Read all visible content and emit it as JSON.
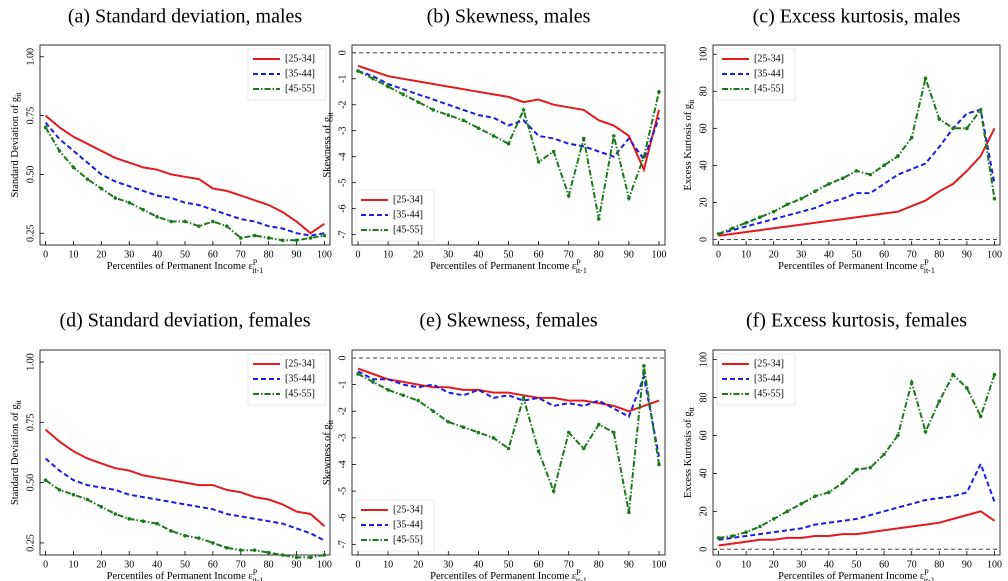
{
  "chart_data": [
    {
      "type": "line",
      "title": "(a) Standard deviation, males",
      "ylabel": {
        "text": "Standard Deviation of g",
        "sub": "it"
      },
      "xlabel": {
        "text": "Percentiles of Permanent Income ε",
        "sup": "P",
        "sub": "it-1"
      },
      "x": [
        0,
        5,
        10,
        15,
        20,
        25,
        30,
        35,
        40,
        45,
        50,
        55,
        60,
        65,
        70,
        75,
        80,
        85,
        90,
        95,
        100
      ],
      "xlim": [
        -2,
        102
      ],
      "xticks": [
        0,
        10,
        20,
        30,
        40,
        50,
        60,
        70,
        80,
        90,
        100
      ],
      "ylim": [
        0.2,
        1.05
      ],
      "yticks": [
        0.25,
        {
          "value": 0.5,
          "label": "0.50"
        },
        0.75,
        {
          "value": 1,
          "label": "1.00"
        }
      ],
      "legend": "upper right",
      "series": [
        {
          "name": "[25-34]",
          "color": "#e41a1c",
          "style": "solid",
          "values": [
            0.75,
            0.7,
            0.66,
            0.63,
            0.6,
            0.57,
            0.55,
            0.53,
            0.52,
            0.5,
            0.49,
            0.48,
            0.44,
            0.43,
            0.41,
            0.39,
            0.37,
            0.34,
            0.3,
            0.25,
            0.29
          ]
        },
        {
          "name": "[35-44]",
          "color": "#1c1ce0",
          "style": "dashed",
          "values": [
            0.72,
            0.65,
            0.6,
            0.55,
            0.5,
            0.47,
            0.45,
            0.43,
            0.41,
            0.4,
            0.38,
            0.37,
            0.35,
            0.33,
            0.31,
            0.3,
            0.28,
            0.27,
            0.25,
            0.24,
            0.25
          ]
        },
        {
          "name": "[45-55]",
          "color": "#1a7a1a",
          "style": "dashdot",
          "values": [
            0.7,
            0.6,
            0.53,
            0.48,
            0.44,
            0.4,
            0.38,
            0.35,
            0.32,
            0.3,
            0.3,
            0.28,
            0.3,
            0.28,
            0.23,
            0.24,
            0.23,
            0.22,
            0.22,
            0.23,
            0.24
          ]
        }
      ]
    },
    {
      "type": "line",
      "title": "(b) Skewness, males",
      "ylabel": {
        "text": "Skewness of g",
        "sub": "it"
      },
      "xlabel": {
        "text": "Percentiles of Permanent Income ε",
        "sup": "P",
        "sub": "it-1"
      },
      "x": [
        0,
        5,
        10,
        15,
        20,
        25,
        30,
        35,
        40,
        45,
        50,
        55,
        60,
        65,
        70,
        75,
        80,
        85,
        90,
        95,
        100
      ],
      "xlim": [
        -2,
        102
      ],
      "xticks": [
        0,
        10,
        20,
        30,
        40,
        50,
        60,
        70,
        80,
        90,
        100
      ],
      "ylim": [
        -7.4,
        0.3
      ],
      "yticks": [
        0,
        -1,
        -2,
        -3,
        -4,
        -5,
        -6,
        -7
      ],
      "hline": 0,
      "legend": "lower left",
      "series": [
        {
          "name": "[25-34]",
          "color": "#e41a1c",
          "style": "solid",
          "values": [
            -0.5,
            -0.7,
            -0.9,
            -1.0,
            -1.1,
            -1.2,
            -1.3,
            -1.4,
            -1.5,
            -1.6,
            -1.7,
            -1.9,
            -1.8,
            -2.0,
            -2.1,
            -2.2,
            -2.6,
            -2.8,
            -3.2,
            -4.5,
            -2.2
          ]
        },
        {
          "name": "[35-44]",
          "color": "#1c1ce0",
          "style": "dashed",
          "values": [
            -0.7,
            -0.9,
            -1.2,
            -1.4,
            -1.6,
            -1.8,
            -2.0,
            -2.2,
            -2.4,
            -2.5,
            -2.8,
            -2.6,
            -3.2,
            -3.3,
            -3.5,
            -3.6,
            -3.8,
            -4.0,
            -3.3,
            -4.1,
            -2.5
          ]
        },
        {
          "name": "[45-55]",
          "color": "#1a7a1a",
          "style": "dashdot",
          "values": [
            -0.7,
            -1.0,
            -1.3,
            -1.6,
            -1.9,
            -2.2,
            -2.4,
            -2.6,
            -2.9,
            -3.2,
            -3.5,
            -2.2,
            -4.2,
            -3.8,
            -5.5,
            -3.3,
            -6.4,
            -3.2,
            -5.6,
            -4.0,
            -1.5
          ]
        }
      ]
    },
    {
      "type": "line",
      "title": "(c) Excess kurtosis, males",
      "ylabel": {
        "text": "Excess Kurtosis of g",
        "sub": "it"
      },
      "xlabel": {
        "text": "Percentiles of Permanent Income ε",
        "sup": "P",
        "sub": "it-1"
      },
      "x": [
        0,
        5,
        10,
        15,
        20,
        25,
        30,
        35,
        40,
        45,
        50,
        55,
        60,
        65,
        70,
        75,
        80,
        85,
        90,
        95,
        100
      ],
      "xlim": [
        -2,
        102
      ],
      "xticks": [
        0,
        10,
        20,
        30,
        40,
        50,
        60,
        70,
        80,
        90,
        100
      ],
      "ylim": [
        -3,
        105
      ],
      "yticks": [
        0,
        20,
        40,
        60,
        80,
        100
      ],
      "hline": 0,
      "legend": "upper left",
      "series": [
        {
          "name": "[25-34]",
          "color": "#e41a1c",
          "style": "solid",
          "values": [
            2,
            3,
            4,
            5,
            6,
            7,
            8,
            9,
            10,
            11,
            12,
            13,
            14,
            15,
            18,
            21,
            26,
            30,
            37,
            45,
            60
          ]
        },
        {
          "name": "[35-44]",
          "color": "#1c1ce0",
          "style": "dashed",
          "values": [
            3,
            5,
            7,
            9,
            11,
            13,
            15,
            17,
            20,
            22,
            25,
            25,
            30,
            35,
            38,
            41,
            50,
            60,
            68,
            70,
            30
          ]
        },
        {
          "name": "[45-55]",
          "color": "#1a7a1a",
          "style": "dashdot",
          "values": [
            3,
            6,
            9,
            12,
            15,
            19,
            22,
            26,
            30,
            33,
            37,
            35,
            40,
            45,
            55,
            87,
            65,
            60,
            60,
            70,
            22
          ]
        }
      ]
    },
    {
      "type": "line",
      "title": "(d) Standard deviation, females",
      "ylabel": {
        "text": "Standard Deviation of g",
        "sub": "it"
      },
      "xlabel": {
        "text": "Percentiles of Permanent Income ε",
        "sup": "P",
        "sub": "it-1"
      },
      "x": [
        0,
        5,
        10,
        15,
        20,
        25,
        30,
        35,
        40,
        45,
        50,
        55,
        60,
        65,
        70,
        75,
        80,
        85,
        90,
        95,
        100
      ],
      "xlim": [
        -2,
        102
      ],
      "xticks": [
        0,
        10,
        20,
        30,
        40,
        50,
        60,
        70,
        80,
        90,
        100
      ],
      "ylim": [
        0.2,
        1.05
      ],
      "yticks": [
        0.25,
        {
          "value": 0.5,
          "label": "0.50"
        },
        0.75,
        {
          "value": 1,
          "label": "1.00"
        }
      ],
      "legend": "upper right",
      "series": [
        {
          "name": "[25-34]",
          "color": "#e41a1c",
          "style": "solid",
          "values": [
            0.72,
            0.67,
            0.63,
            0.6,
            0.58,
            0.56,
            0.55,
            0.53,
            0.52,
            0.51,
            0.5,
            0.49,
            0.49,
            0.47,
            0.46,
            0.44,
            0.43,
            0.41,
            0.38,
            0.37,
            0.32
          ]
        },
        {
          "name": "[35-44]",
          "color": "#1c1ce0",
          "style": "dashed",
          "values": [
            0.6,
            0.55,
            0.51,
            0.49,
            0.48,
            0.47,
            0.45,
            0.44,
            0.43,
            0.42,
            0.41,
            0.4,
            0.39,
            0.37,
            0.36,
            0.35,
            0.34,
            0.33,
            0.31,
            0.29,
            0.26
          ]
        },
        {
          "name": "[45-55]",
          "color": "#1a7a1a",
          "style": "dashdot",
          "values": [
            0.51,
            0.47,
            0.45,
            0.43,
            0.4,
            0.37,
            0.35,
            0.34,
            0.33,
            0.3,
            0.28,
            0.27,
            0.25,
            0.23,
            0.22,
            0.22,
            0.21,
            0.2,
            0.19,
            0.19,
            0.2
          ]
        }
      ]
    },
    {
      "type": "line",
      "title": "(e) Skewness, females",
      "ylabel": {
        "text": "Skewness of g",
        "sub": "it"
      },
      "xlabel": {
        "text": "Percentiles of Permanent Income ε",
        "sup": "P",
        "sub": "it-1"
      },
      "x": [
        0,
        5,
        10,
        15,
        20,
        25,
        30,
        35,
        40,
        45,
        50,
        55,
        60,
        65,
        70,
        75,
        80,
        85,
        90,
        95,
        100
      ],
      "xlim": [
        -2,
        102
      ],
      "xticks": [
        0,
        10,
        20,
        30,
        40,
        50,
        60,
        70,
        80,
        90,
        100
      ],
      "ylim": [
        -7.4,
        0.3
      ],
      "yticks": [
        0,
        -1,
        -2,
        -3,
        -4,
        -5,
        -6,
        -7
      ],
      "hline": 0,
      "legend": "lower left",
      "series": [
        {
          "name": "[25-34]",
          "color": "#e41a1c",
          "style": "solid",
          "values": [
            -0.4,
            -0.6,
            -0.8,
            -0.9,
            -1.0,
            -1.1,
            -1.1,
            -1.2,
            -1.2,
            -1.3,
            -1.3,
            -1.4,
            -1.5,
            -1.5,
            -1.6,
            -1.6,
            -1.7,
            -1.8,
            -2.0,
            -1.8,
            -1.6
          ]
        },
        {
          "name": "[35-44]",
          "color": "#1c1ce0",
          "style": "dashed",
          "values": [
            -0.5,
            -0.8,
            -0.8,
            -1.0,
            -1.1,
            -1.0,
            -1.3,
            -1.4,
            -1.2,
            -1.5,
            -1.4,
            -1.6,
            -1.5,
            -1.8,
            -1.7,
            -1.8,
            -1.6,
            -1.9,
            -2.2,
            -0.7,
            -3.7
          ]
        },
        {
          "name": "[45-55]",
          "color": "#1a7a1a",
          "style": "dashdot",
          "values": [
            -0.6,
            -0.9,
            -1.2,
            -1.4,
            -1.6,
            -2.0,
            -2.4,
            -2.6,
            -2.8,
            -3.0,
            -3.4,
            -1.5,
            -3.5,
            -5.0,
            -2.8,
            -3.4,
            -2.5,
            -2.8,
            -5.8,
            -0.3,
            -4.0
          ]
        }
      ]
    },
    {
      "type": "line",
      "title": "(f) Excess kurtosis, females",
      "ylabel": {
        "text": "Excess Kurtosis of g",
        "sub": "it"
      },
      "xlabel": {
        "text": "Percentiles of Permanent Income ε",
        "sup": "P",
        "sub": "it-1"
      },
      "x": [
        0,
        5,
        10,
        15,
        20,
        25,
        30,
        35,
        40,
        45,
        50,
        55,
        60,
        65,
        70,
        75,
        80,
        85,
        90,
        95,
        100
      ],
      "xlim": [
        -2,
        102
      ],
      "xticks": [
        0,
        10,
        20,
        30,
        40,
        50,
        60,
        70,
        80,
        90,
        100
      ],
      "ylim": [
        -3,
        105
      ],
      "yticks": [
        0,
        20,
        40,
        60,
        80,
        100
      ],
      "hline": 0,
      "legend": "upper left",
      "series": [
        {
          "name": "[25-34]",
          "color": "#e41a1c",
          "style": "solid",
          "values": [
            2,
            3,
            4,
            5,
            5,
            6,
            6,
            7,
            7,
            8,
            8,
            9,
            10,
            11,
            12,
            13,
            14,
            16,
            18,
            20,
            15
          ]
        },
        {
          "name": "[35-44]",
          "color": "#1c1ce0",
          "style": "dashed",
          "values": [
            5,
            6,
            7,
            8,
            9,
            10,
            11,
            13,
            14,
            15,
            16,
            18,
            20,
            22,
            24,
            26,
            27,
            28,
            30,
            45,
            25
          ]
        },
        {
          "name": "[45-55]",
          "color": "#1a7a1a",
          "style": "dashdot",
          "values": [
            6,
            7,
            9,
            12,
            16,
            20,
            24,
            28,
            30,
            35,
            42,
            43,
            50,
            60,
            88,
            62,
            78,
            92,
            85,
            70,
            92
          ]
        }
      ]
    }
  ]
}
